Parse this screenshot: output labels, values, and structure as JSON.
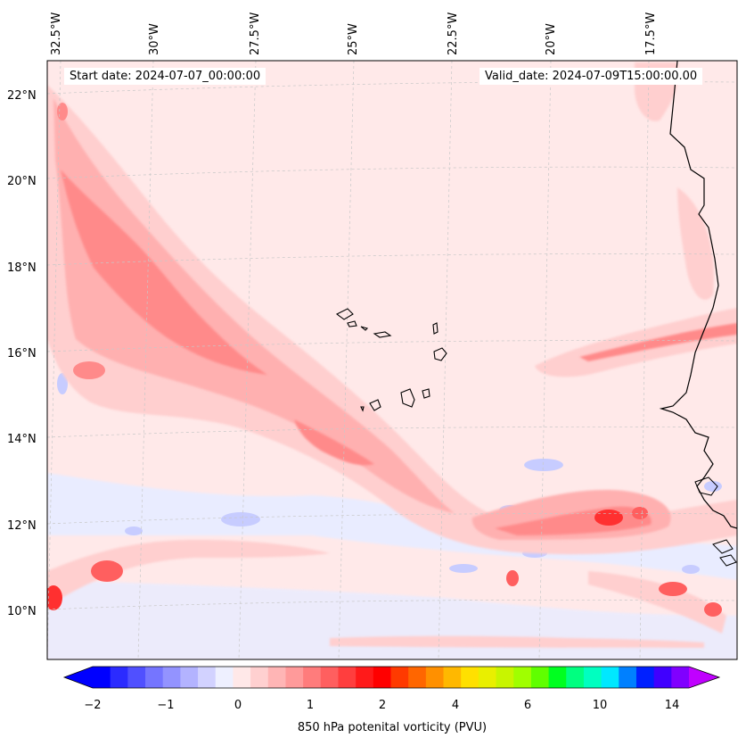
{
  "start_date_label": "Start date: 2024-07-07_00:00:00",
  "valid_date_label": "Valid_date: 2024-07-09T15:00:00.00",
  "lon_labels": [
    "32.5°W",
    "30°W",
    "27.5°W",
    "25°W",
    "22.5°W",
    "20°W",
    "17.5°W"
  ],
  "lat_labels": [
    "22°N",
    "20°N",
    "18°N",
    "16°N",
    "14°N",
    "12°N",
    "10°N"
  ],
  "colorbar": {
    "title": "850 hPa potenital vorticity (PVU)",
    "tick_labels": [
      "−2",
      "−1",
      "0",
      "1",
      "2",
      "4",
      "6",
      "10",
      "14"
    ],
    "colors": [
      "#0000ff",
      "#2b2bff",
      "#5050ff",
      "#7575ff",
      "#9393ff",
      "#b3b3ff",
      "#d2d2ff",
      "#eef0ff",
      "#ffe8e8",
      "#ffd0d0",
      "#ffb5b5",
      "#ff9a9a",
      "#ff7c7c",
      "#ff5f5f",
      "#ff3e3e",
      "#ff1a1a",
      "#ff0000",
      "#ff3a00",
      "#ff6600",
      "#ff9000",
      "#ffb800",
      "#ffe000",
      "#e9ef00",
      "#c8f500",
      "#a0ff00",
      "#60ff00",
      "#00ff20",
      "#00ff80",
      "#00ffc0",
      "#00e8ff",
      "#0080ff",
      "#0020ff",
      "#4000ff",
      "#8000ff"
    ],
    "under_color": "#0000ff",
    "over_color": "#c000ff"
  },
  "fill": {
    "background": "#ffe9e9",
    "negative_light": "#e9ecff",
    "negative_mid": "#c7ccff",
    "positive_light": "#ffcfcf",
    "positive_mid": "#ffb0b0",
    "positive_strong": "#ff8a8a",
    "positive_peak": "#ff3030"
  }
}
